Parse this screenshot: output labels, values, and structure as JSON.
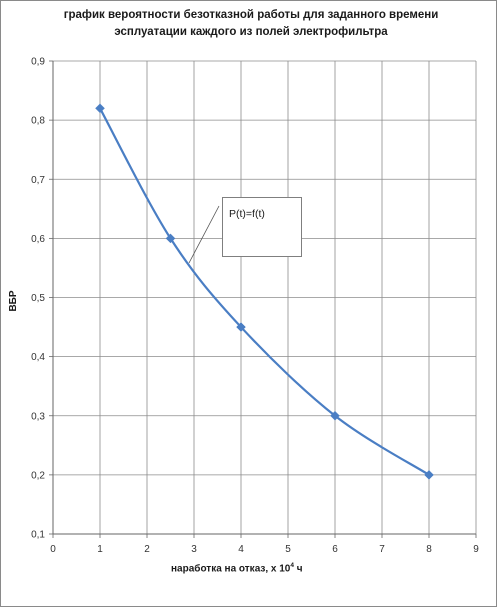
{
  "chart_data": {
    "type": "line",
    "title": [
      "график вероятности безотказной работы для заданного времени",
      "эсплуатации  каждого  из полей электрофильтра"
    ],
    "xlabel_main": "наработка  на отказ, х 10",
    "xlabel_exp": "4",
    "xlabel_unit": " ч",
    "ylabel": "ВБР",
    "xlim": [
      0,
      9
    ],
    "ylim": [
      0.1,
      0.9
    ],
    "x_ticks": [
      "0",
      "1",
      "2",
      "3",
      "4",
      "5",
      "6",
      "7",
      "8",
      "9"
    ],
    "y_ticks": [
      "0,1",
      "0,2",
      "0,3",
      "0,4",
      "0,5",
      "0,6",
      "0,7",
      "0,8",
      "0,9"
    ],
    "grid": true,
    "series": [
      {
        "x": [
          1,
          2.5,
          4,
          6,
          8
        ],
        "y": [
          0.82,
          0.6,
          0.45,
          0.3,
          0.2
        ],
        "color": "#4a7ec4",
        "marker": "diamond"
      }
    ],
    "annotation": "P(t)=f(t)"
  }
}
